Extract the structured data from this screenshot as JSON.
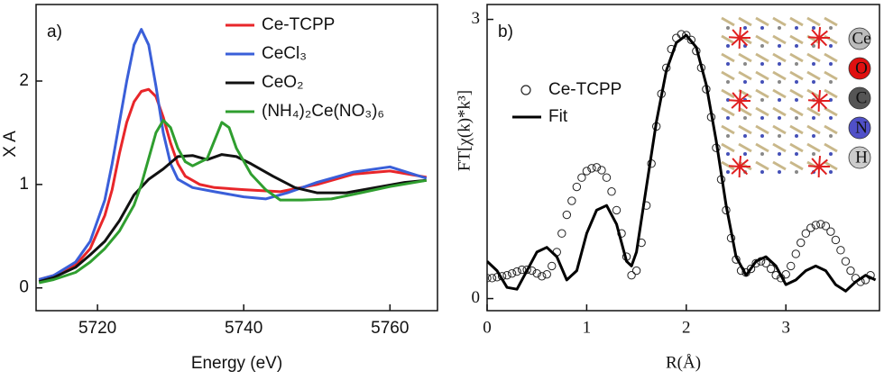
{
  "chart_data": [
    {
      "type": "line",
      "panel_label": "a)",
      "x_label": "Energy (eV)",
      "y_label": "X A",
      "xlim": [
        5711.6,
        5766.5
      ],
      "ylim": [
        -0.22,
        2.74
      ],
      "xticks": [
        5720,
        5740,
        5760
      ],
      "yticks": [
        0,
        1,
        2
      ],
      "series": [
        {
          "name": "Ce-TCPP",
          "color": "#e8262a",
          "x": [
            5712,
            5714,
            5717,
            5719,
            5721,
            5722,
            5723,
            5724,
            5725,
            5726,
            5727,
            5728,
            5729,
            5730,
            5731,
            5732,
            5734,
            5736,
            5740,
            5745,
            5750,
            5755,
            5760,
            5765
          ],
          "values": [
            0.08,
            0.12,
            0.22,
            0.38,
            0.7,
            0.95,
            1.3,
            1.6,
            1.8,
            1.9,
            1.92,
            1.85,
            1.65,
            1.4,
            1.2,
            1.08,
            1.0,
            0.97,
            0.95,
            0.93,
            1.0,
            1.1,
            1.13,
            1.07
          ]
        },
        {
          "name": "CeCl₃",
          "color": "#3a5fd9",
          "x": [
            5712,
            5714,
            5717,
            5719,
            5721,
            5722,
            5723,
            5724,
            5725,
            5726,
            5727,
            5728,
            5729,
            5730,
            5731,
            5733,
            5736,
            5740,
            5743,
            5746,
            5750,
            5755,
            5760,
            5765
          ],
          "values": [
            0.08,
            0.12,
            0.25,
            0.45,
            0.85,
            1.2,
            1.6,
            2.0,
            2.35,
            2.5,
            2.35,
            1.95,
            1.5,
            1.2,
            1.05,
            0.97,
            0.93,
            0.88,
            0.86,
            0.92,
            1.02,
            1.12,
            1.17,
            1.06
          ]
        },
        {
          "name": "CeO₂",
          "color": "#111111",
          "x": [
            5712,
            5714,
            5717,
            5719,
            5721,
            5723,
            5725,
            5727,
            5729,
            5731,
            5733,
            5735,
            5737,
            5739,
            5741,
            5744,
            5747,
            5750,
            5754,
            5758,
            5762,
            5765
          ],
          "values": [
            0.06,
            0.1,
            0.2,
            0.32,
            0.45,
            0.65,
            0.9,
            1.05,
            1.15,
            1.27,
            1.28,
            1.24,
            1.29,
            1.27,
            1.2,
            1.08,
            0.97,
            0.92,
            0.92,
            0.97,
            1.02,
            1.04
          ]
        },
        {
          "name": "(NH₄)₂Ce(NO₃)₆",
          "color": "#2f9e2f",
          "x": [
            5712,
            5714,
            5717,
            5719,
            5721,
            5723,
            5725,
            5726,
            5727,
            5728,
            5729,
            5730,
            5731,
            5732,
            5733,
            5735,
            5737,
            5738,
            5739,
            5741,
            5743,
            5745,
            5748,
            5752,
            5756,
            5760,
            5765
          ],
          "values": [
            0.05,
            0.08,
            0.15,
            0.25,
            0.38,
            0.55,
            0.8,
            1.0,
            1.25,
            1.5,
            1.62,
            1.55,
            1.35,
            1.22,
            1.18,
            1.25,
            1.6,
            1.55,
            1.35,
            1.1,
            0.95,
            0.85,
            0.85,
            0.86,
            0.92,
            0.98,
            1.04
          ]
        }
      ]
    },
    {
      "type": "line",
      "panel_label": "b)",
      "x_label": "R(Å)",
      "y_label": "FT[χ(k)*k³]",
      "xlim": [
        0,
        3.94
      ],
      "ylim": [
        -0.13,
        3.16
      ],
      "xticks": [
        0,
        1,
        2,
        3
      ],
      "yticks": [
        0,
        3
      ],
      "inset_labels": [
        "Ce",
        "O",
        "C",
        "N",
        "H"
      ],
      "series": [
        {
          "name": "Ce-TCPP",
          "color": "#222222",
          "style": "markers",
          "x": [
            0,
            0.05,
            0.1,
            0.15,
            0.2,
            0.25,
            0.3,
            0.35,
            0.4,
            0.45,
            0.5,
            0.55,
            0.6,
            0.65,
            0.7,
            0.75,
            0.8,
            0.85,
            0.9,
            0.95,
            1.0,
            1.05,
            1.1,
            1.15,
            1.2,
            1.25,
            1.3,
            1.35,
            1.4,
            1.45,
            1.5,
            1.55,
            1.6,
            1.65,
            1.7,
            1.75,
            1.8,
            1.85,
            1.9,
            1.95,
            2.0,
            2.05,
            2.1,
            2.15,
            2.2,
            2.25,
            2.3,
            2.35,
            2.4,
            2.45,
            2.5,
            2.55,
            2.6,
            2.65,
            2.7,
            2.75,
            2.8,
            2.85,
            2.9,
            2.95,
            3.0,
            3.05,
            3.1,
            3.15,
            3.2,
            3.25,
            3.3,
            3.35,
            3.4,
            3.45,
            3.5,
            3.55,
            3.6,
            3.65,
            3.7,
            3.75,
            3.8,
            3.85
          ],
          "values": [
            0.22,
            0.22,
            0.23,
            0.24,
            0.25,
            0.27,
            0.29,
            0.31,
            0.31,
            0.3,
            0.27,
            0.24,
            0.26,
            0.35,
            0.5,
            0.7,
            0.9,
            1.05,
            1.2,
            1.3,
            1.37,
            1.4,
            1.41,
            1.38,
            1.3,
            1.15,
            0.95,
            0.7,
            0.45,
            0.25,
            0.3,
            0.6,
            1.0,
            1.45,
            1.85,
            2.2,
            2.48,
            2.68,
            2.8,
            2.84,
            2.83,
            2.78,
            2.66,
            2.48,
            2.25,
            1.95,
            1.62,
            1.28,
            0.95,
            0.65,
            0.42,
            0.3,
            0.28,
            0.32,
            0.38,
            0.4,
            0.38,
            0.32,
            0.25,
            0.22,
            0.26,
            0.35,
            0.48,
            0.6,
            0.7,
            0.76,
            0.79,
            0.8,
            0.78,
            0.72,
            0.63,
            0.52,
            0.4,
            0.3,
            0.22,
            0.18,
            0.2,
            0.25
          ]
        },
        {
          "name": "Fit",
          "color": "#000000",
          "style": "line",
          "x": [
            0,
            0.1,
            0.2,
            0.3,
            0.4,
            0.5,
            0.6,
            0.7,
            0.8,
            0.9,
            1.0,
            1.1,
            1.2,
            1.3,
            1.4,
            1.45,
            1.5,
            1.6,
            1.7,
            1.8,
            1.9,
            2.0,
            2.1,
            2.2,
            2.3,
            2.4,
            2.5,
            2.6,
            2.7,
            2.8,
            2.9,
            3.0,
            3.1,
            3.2,
            3.3,
            3.4,
            3.5,
            3.6,
            3.7,
            3.8,
            3.9
          ],
          "values": [
            0.4,
            0.3,
            0.12,
            0.1,
            0.3,
            0.5,
            0.55,
            0.45,
            0.2,
            0.3,
            0.7,
            0.95,
            1.0,
            0.8,
            0.4,
            0.35,
            0.5,
            1.2,
            1.9,
            2.45,
            2.75,
            2.83,
            2.7,
            2.3,
            1.7,
            1.0,
            0.45,
            0.25,
            0.4,
            0.45,
            0.35,
            0.15,
            0.2,
            0.3,
            0.35,
            0.3,
            0.15,
            0.08,
            0.18,
            0.25,
            0.2
          ]
        }
      ]
    }
  ]
}
